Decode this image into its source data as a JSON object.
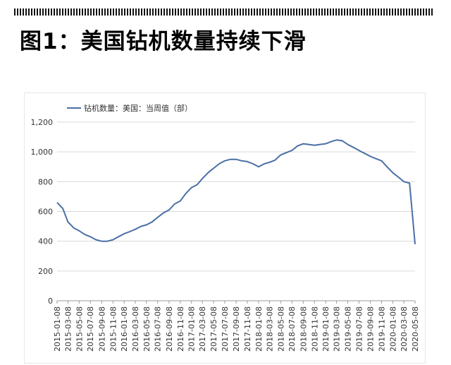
{
  "page": {
    "title": "图1：美国钻机数量持续下滑"
  },
  "chart_data": {
    "type": "line",
    "title": "",
    "xlabel": "",
    "ylabel": "",
    "ylim": [
      0,
      1200
    ],
    "yticks": [
      0,
      200,
      400,
      600,
      800,
      1000,
      1200
    ],
    "ytick_labels": [
      "0",
      "200",
      "400",
      "600",
      "800",
      "1,000",
      "1,200"
    ],
    "xtick_labels": [
      "2015-01-08",
      "2015-03-08",
      "2015-05-08",
      "2015-07-08",
      "2015-09-08",
      "2015-11-08",
      "2016-01-08",
      "2016-03-08",
      "2016-05-08",
      "2016-07-08",
      "2016-09-08",
      "2016-11-08",
      "2017-01-08",
      "2017-03-08",
      "2017-05-08",
      "2017-07-08",
      "2017-09-08",
      "2017-11-08",
      "2018-01-08",
      "2018-03-08",
      "2018-05-08",
      "2018-07-08",
      "2018-09-08",
      "2018-11-08",
      "2019-01-08",
      "2019-03-08",
      "2019-05-08",
      "2019-07-08",
      "2019-09-08",
      "2019-11-08",
      "2020-01-08",
      "2020-03-08",
      "2020-05-08"
    ],
    "grid": "horizontal",
    "legend": "top-left",
    "color": "#4a6fa5",
    "series": [
      {
        "name": "钻机数量：美国：当周值（部）",
        "x": [
          "2015-01-08",
          "2015-02-08",
          "2015-03-08",
          "2015-04-08",
          "2015-05-08",
          "2015-06-08",
          "2015-07-08",
          "2015-08-08",
          "2015-09-08",
          "2015-10-08",
          "2015-11-08",
          "2015-12-08",
          "2016-01-08",
          "2016-02-08",
          "2016-03-08",
          "2016-04-08",
          "2016-05-08",
          "2016-06-08",
          "2016-07-08",
          "2016-08-08",
          "2016-09-08",
          "2016-10-08",
          "2016-11-08",
          "2016-12-08",
          "2017-01-08",
          "2017-02-08",
          "2017-03-08",
          "2017-04-08",
          "2017-05-08",
          "2017-06-08",
          "2017-07-08",
          "2017-08-08",
          "2017-09-08",
          "2017-10-08",
          "2017-11-08",
          "2017-12-08",
          "2018-01-08",
          "2018-02-08",
          "2018-03-08",
          "2018-04-08",
          "2018-05-08",
          "2018-06-08",
          "2018-07-08",
          "2018-08-08",
          "2018-09-08",
          "2018-10-08",
          "2018-11-08",
          "2018-12-08",
          "2019-01-08",
          "2019-02-08",
          "2019-03-08",
          "2019-04-08",
          "2019-05-08",
          "2019-06-08",
          "2019-07-08",
          "2019-08-08",
          "2019-09-08",
          "2019-10-08",
          "2019-11-08",
          "2019-12-08",
          "2020-01-08",
          "2020-02-08",
          "2020-03-08",
          "2020-04-08",
          "2020-05-08"
        ],
        "values": [
          660,
          620,
          530,
          490,
          470,
          445,
          430,
          410,
          400,
          400,
          410,
          430,
          450,
          465,
          480,
          500,
          510,
          530,
          560,
          590,
          610,
          650,
          670,
          720,
          760,
          780,
          820,
          860,
          890,
          920,
          940,
          950,
          950,
          940,
          935,
          920,
          900,
          920,
          930,
          945,
          980,
          995,
          1010,
          1040,
          1055,
          1050,
          1045,
          1050,
          1055,
          1070,
          1080,
          1075,
          1050,
          1030,
          1010,
          990,
          970,
          955,
          940,
          900,
          860,
          830,
          800,
          790,
          380
        ]
      }
    ]
  }
}
